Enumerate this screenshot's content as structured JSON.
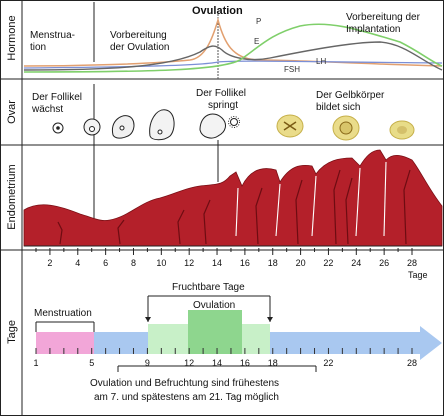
{
  "sections": {
    "hormone": "Hormone",
    "ovar": "Ovar",
    "endometrium": "Endometrium",
    "tage": "Tage"
  },
  "hormone_panel": {
    "menstruation": [
      "Menstrua-",
      "tion"
    ],
    "vorbereitung_ovulation": [
      "Vorbereitung",
      "der Ovulation"
    ],
    "ovulation": "Ovulation",
    "vorbereitung_implantation": [
      "Vorbereitung der",
      "Implantation"
    ],
    "curve_labels": {
      "p": "P",
      "e": "E",
      "lh": "LH",
      "fsh": "FSH"
    }
  },
  "ovar_panel": {
    "follikel_waechst": [
      "Der Follikel",
      "wächst"
    ],
    "follikel_springt": [
      "Der Follikel",
      "springt"
    ],
    "gelbkoerper": [
      "Der Gelbkörper",
      "bildet sich"
    ]
  },
  "endometrium_axis": {
    "ticks": [
      "2",
      "4",
      "6",
      "8",
      "10",
      "12",
      "14",
      "16",
      "18",
      "20",
      "22",
      "24",
      "26",
      "28"
    ],
    "unit": "Tage"
  },
  "tage_panel": {
    "fruchtbare_tage": "Fruchtbare Tage",
    "ovulation": "Ovulation",
    "menstruation": "Menstruation",
    "day_labels": [
      "1",
      "5",
      "9",
      "12",
      "14",
      "16",
      "18",
      "22",
      "28"
    ],
    "note": [
      "Ovulation und Befruchtung sind frühestens",
      "am 7. und spätestens am 21. Tag möglich"
    ]
  },
  "colors": {
    "uterus_red": "#b4202a",
    "menstruation_pink": "#f2a6d8",
    "arrow_blue": "#a9c8f0",
    "fertile_green": "#c8f0c8",
    "ovulation_green": "#8ed68e",
    "p_curve": "#7fcf6a",
    "e_curve": "#555555",
    "lh_curve": "#e2a070",
    "fsh_curve": "#7b8fd6"
  }
}
